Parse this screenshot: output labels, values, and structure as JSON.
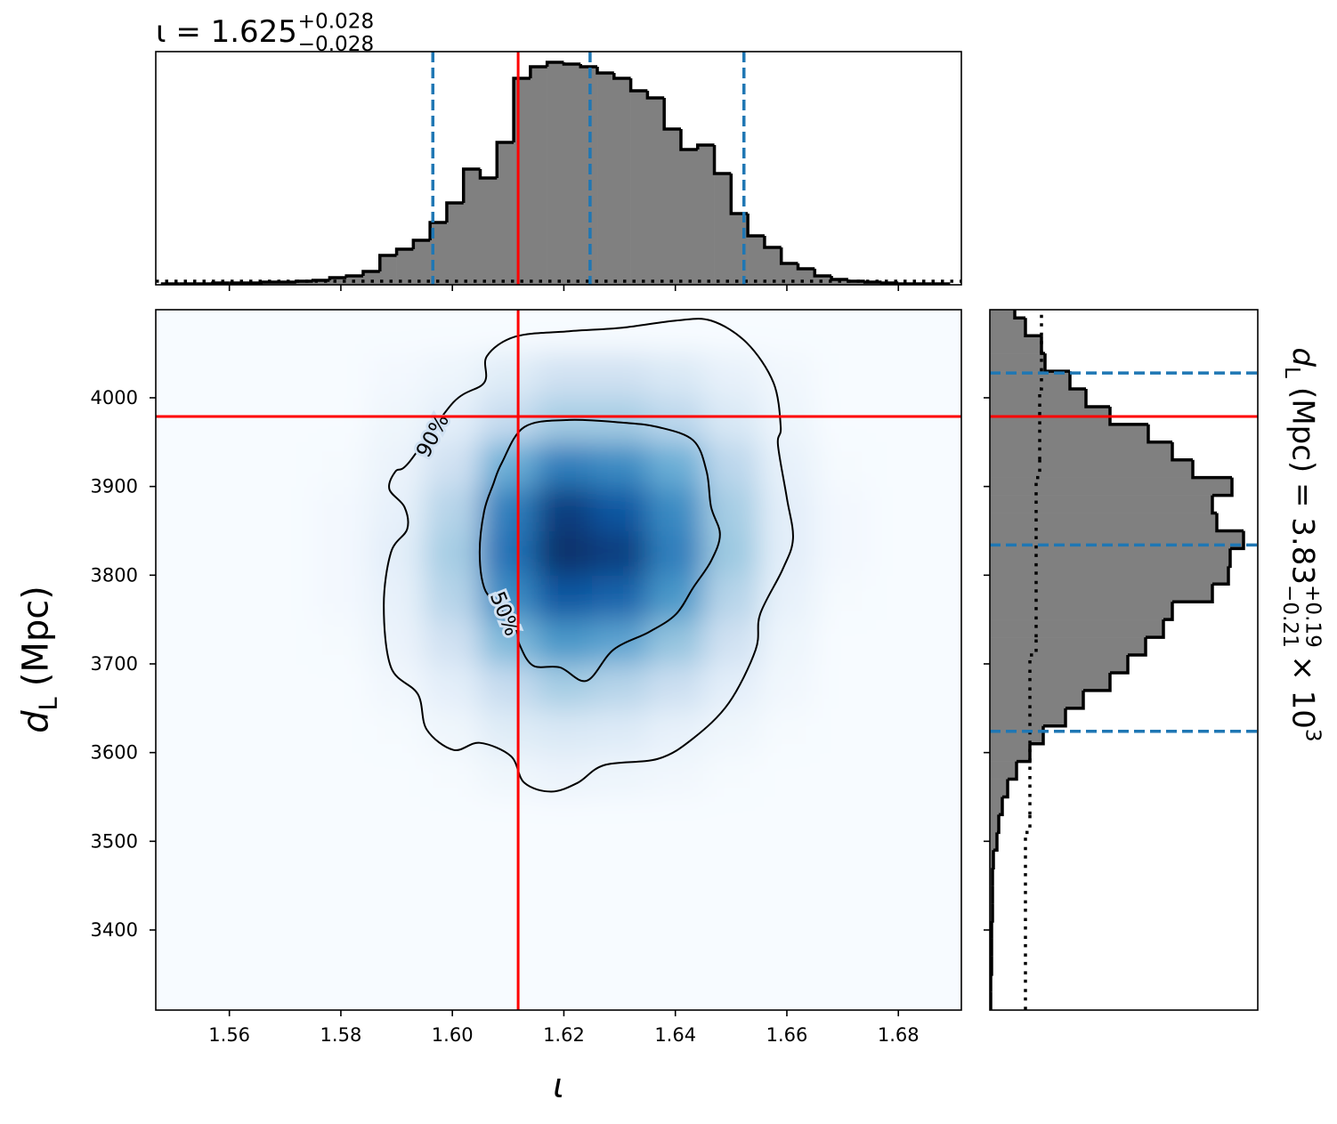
{
  "chart_data": {
    "type": "corner",
    "title": {
      "main": "ι = 1.625",
      "upper": "+0.028",
      "lower": "−0.028"
    },
    "xlabel": "ι",
    "ylabel": {
      "symbol": "d",
      "subscript": "L",
      "unit": "(Mpc)"
    },
    "right_label": {
      "symbol": "d",
      "subscript": "L",
      "text": "(Mpc) = 3.83",
      "upper": "+0.19",
      "lower": "−0.21",
      "multiplier": "× 10",
      "exponent": "3"
    },
    "xlim": [
      1.5468,
      1.6913
    ],
    "ylim": [
      3309.7,
      4099.3
    ],
    "xticks": [
      1.56,
      1.58,
      {
        "value": 1.6,
        "label": "1.60"
      },
      1.62,
      1.64,
      1.66,
      1.68
    ],
    "yticks": [
      3400,
      3500,
      3600,
      3700,
      3800,
      3900,
      4000
    ],
    "truth": {
      "x": 1.6118,
      "y": 3978.9,
      "color": "#ff0000"
    },
    "quantile_color": "#1f77b4",
    "hist_color": "#808080",
    "colormap": "Blues",
    "top_hist": {
      "bins": [
        1.548,
        1.551,
        1.554,
        1.557,
        1.56,
        1.563,
        1.566,
        1.569,
        1.572,
        1.575,
        1.578,
        1.581,
        1.584,
        1.587,
        1.59,
        1.593,
        1.596,
        1.599,
        1.602,
        1.605,
        1.608,
        1.611,
        1.614,
        1.617,
        1.62,
        1.623,
        1.626,
        1.629,
        1.632,
        1.635,
        1.638,
        1.641,
        1.644,
        1.647,
        1.65,
        1.653,
        1.656,
        1.659,
        1.662,
        1.665,
        1.668,
        1.671,
        1.674,
        1.677,
        1.68,
        1.683,
        1.686,
        1.689
      ],
      "counts": [
        1,
        1,
        1,
        2,
        2,
        2,
        3,
        3,
        4,
        5,
        8,
        10,
        15,
        33,
        40,
        50,
        70,
        92,
        130,
        120,
        160,
        232,
        245,
        250,
        248,
        245,
        238,
        232,
        218,
        210,
        175,
        152,
        157,
        125,
        80,
        55,
        42,
        24,
        18,
        10,
        6,
        4,
        3,
        2,
        1,
        1,
        1
      ],
      "ylim": [
        0,
        262
      ],
      "prior": 4,
      "quantiles": [
        1.5965,
        1.6247,
        1.6523
      ]
    },
    "right_hist": {
      "bins": [
        3310,
        3330,
        3350,
        3370,
        3390,
        3410,
        3430,
        3450,
        3470,
        3490,
        3510,
        3530,
        3550,
        3570,
        3590,
        3610,
        3630,
        3650,
        3670,
        3690,
        3710,
        3730,
        3750,
        3770,
        3790,
        3810,
        3830,
        3850,
        3870,
        3890,
        3910,
        3930,
        3950,
        3970,
        3990,
        4010,
        4030,
        4050,
        4070,
        4090,
        4110
      ],
      "counts": [
        1,
        1,
        2,
        2,
        2,
        3,
        3,
        3,
        4,
        8,
        10,
        14,
        20,
        30,
        45,
        60,
        85,
        105,
        135,
        155,
        175,
        195,
        205,
        250,
        268,
        270,
        285,
        255,
        250,
        272,
        228,
        205,
        178,
        135,
        108,
        90,
        62,
        58,
        40,
        28
      ],
      "xlim": [
        0,
        301
      ],
      "prior": [
        40,
        40,
        40,
        40,
        40,
        40,
        40,
        40,
        40,
        40,
        45,
        45,
        45,
        45,
        45,
        45,
        45,
        45,
        45,
        45,
        52,
        52,
        52,
        52,
        52,
        52,
        52,
        52,
        52,
        52,
        56,
        56,
        56,
        56,
        56,
        58,
        58,
        58,
        58,
        58
      ],
      "quantiles": [
        3624,
        3834,
        4028
      ]
    },
    "density": {
      "x_edges": [
        1.575,
        1.585,
        1.595,
        1.605,
        1.615,
        1.625,
        1.635,
        1.645,
        1.655,
        1.665,
        1.675
      ],
      "y_edges": [
        3550,
        3600,
        3650,
        3700,
        3750,
        3800,
        3850,
        3900,
        3950,
        4000,
        4050
      ],
      "values": [
        [
          0,
          0,
          0.01,
          0.04,
          0.06,
          0.05,
          0.03,
          0.01,
          0,
          0
        ],
        [
          0,
          0.01,
          0.04,
          0.12,
          0.15,
          0.13,
          0.08,
          0.04,
          0.01,
          0
        ],
        [
          0,
          0.03,
          0.1,
          0.25,
          0.35,
          0.3,
          0.22,
          0.1,
          0.03,
          0
        ],
        [
          0.01,
          0.06,
          0.2,
          0.45,
          0.6,
          0.55,
          0.4,
          0.2,
          0.05,
          0
        ],
        [
          0.02,
          0.08,
          0.3,
          0.65,
          0.85,
          0.8,
          0.6,
          0.3,
          0.08,
          0.01
        ],
        [
          0.02,
          0.1,
          0.35,
          0.75,
          1.0,
          0.95,
          0.7,
          0.38,
          0.1,
          0.02
        ],
        [
          0.02,
          0.08,
          0.3,
          0.7,
          0.95,
          0.85,
          0.65,
          0.35,
          0.1,
          0.02
        ],
        [
          0.01,
          0.06,
          0.2,
          0.5,
          0.7,
          0.65,
          0.5,
          0.28,
          0.08,
          0.01
        ],
        [
          0,
          0.04,
          0.1,
          0.25,
          0.35,
          0.35,
          0.28,
          0.15,
          0.05,
          0
        ],
        [
          0,
          0.02,
          0.05,
          0.12,
          0.2,
          0.2,
          0.15,
          0.08,
          0.03,
          0
        ]
      ]
    },
    "contours": [
      {
        "label": "90%",
        "x": [
          1.6002,
          1.6057,
          1.6062,
          1.6113,
          1.6209,
          1.6305,
          1.6401,
          1.6464,
          1.6528,
          1.6576,
          1.6589,
          1.6584,
          1.66,
          1.6611,
          1.6592,
          1.6552,
          1.6544,
          1.6496,
          1.6432,
          1.6369,
          1.6273,
          1.6225,
          1.6177,
          1.6129,
          1.6105,
          1.6049,
          1.6002,
          1.5954,
          1.5938,
          1.589,
          1.5877,
          1.589,
          1.5919,
          1.5914,
          1.5887,
          1.5898,
          1.5922
        ],
        "y": [
          3995,
          4017,
          4047,
          4069,
          4075,
          4079,
          4087,
          4087,
          4062,
          4017,
          3967,
          3947,
          3887,
          3841,
          3806,
          3756,
          3716,
          3656,
          3616,
          3593,
          3586,
          3566,
          3556,
          3566,
          3596,
          3611,
          3603,
          3626,
          3666,
          3696,
          3766,
          3826,
          3852,
          3877,
          3897,
          3917,
          3927
        ]
      },
      {
        "label": "50%",
        "x": [
          1.6089,
          1.6129,
          1.6209,
          1.6305,
          1.6369,
          1.6432,
          1.6456,
          1.6464,
          1.648,
          1.6464,
          1.6432,
          1.6401,
          1.6353,
          1.6289,
          1.6241,
          1.6193,
          1.6145,
          1.6121,
          1.6113,
          1.6081,
          1.6057,
          1.6049,
          1.6057,
          1.6073
        ],
        "y": [
          3927,
          3967,
          3975,
          3972,
          3967,
          3952,
          3917,
          3877,
          3846,
          3816,
          3786,
          3756,
          3736,
          3716,
          3681,
          3696,
          3698,
          3721,
          3741,
          3766,
          3786,
          3826,
          3872,
          3902
        ]
      }
    ]
  }
}
